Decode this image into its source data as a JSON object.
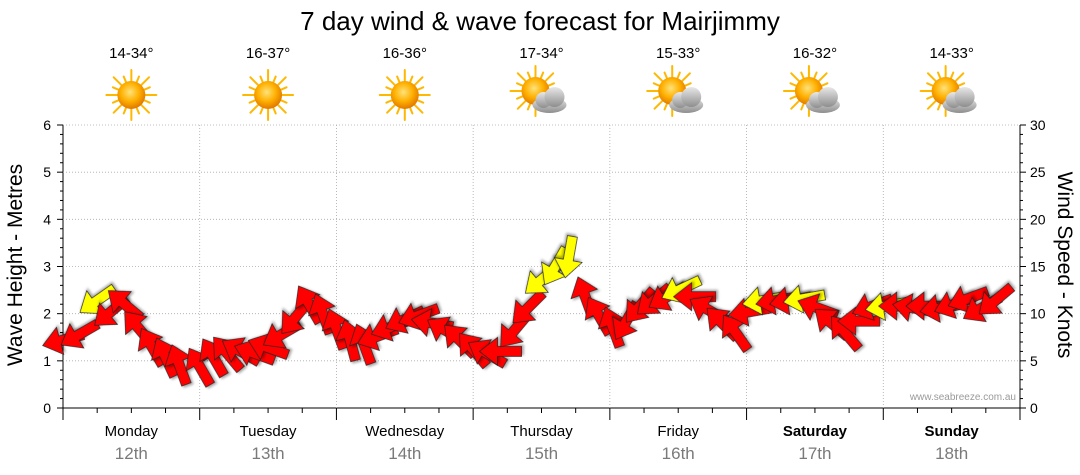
{
  "chart_data": {
    "type": "line",
    "title": "7 day wind & wave forecast for Mairjimmy",
    "ylabel_left": "Wave Height - Metres",
    "ylabel_right": "Wind Speed - Knots",
    "ylim_left": [
      0,
      6
    ],
    "ylim_right": [
      0,
      30
    ],
    "yticks_left": [
      "0",
      "1",
      "2",
      "3",
      "4",
      "5",
      "6"
    ],
    "yticks_right": [
      "0",
      "5",
      "10",
      "15",
      "20",
      "25",
      "30"
    ],
    "grid": true,
    "watermark": "www.seabreeze.com.au",
    "days": [
      {
        "name": "Monday",
        "date": "12th",
        "temp": "14-34°",
        "weather": "sunny",
        "bold": false
      },
      {
        "name": "Tuesday",
        "date": "13th",
        "temp": "16-37°",
        "weather": "sunny",
        "bold": false
      },
      {
        "name": "Wednesday",
        "date": "14th",
        "temp": "16-36°",
        "weather": "sunny",
        "bold": false
      },
      {
        "name": "Thursday",
        "date": "15th",
        "temp": "17-34°",
        "weather": "partly-cloudy",
        "bold": false
      },
      {
        "name": "Friday",
        "date": "16th",
        "temp": "15-33°",
        "weather": "partly-cloudy",
        "bold": false
      },
      {
        "name": "Saturday",
        "date": "17th",
        "temp": "16-32°",
        "weather": "partly-cloudy",
        "bold": true
      },
      {
        "name": "Sunday",
        "date": "18th",
        "temp": "14-33°",
        "weather": "partly-cloudy",
        "bold": true
      }
    ],
    "wind": {
      "name": "Wind Speed - Knots",
      "colors": {
        "strong": "#ff0000",
        "light": "#ffff00",
        "outline": "#222222"
      },
      "points": [
        {
          "t": 0.0,
          "knots": 7.2,
          "dir": 75
        },
        {
          "t": 0.12,
          "knots": 7.8,
          "dir": 60
        },
        {
          "t": 0.25,
          "knots": 11.4,
          "dir": 55,
          "light": true
        },
        {
          "t": 0.35,
          "knots": 10.2,
          "dir": 50
        },
        {
          "t": 0.45,
          "knots": 11.0,
          "dir": 130
        },
        {
          "t": 0.55,
          "knots": 8.5,
          "dir": 140
        },
        {
          "t": 0.65,
          "knots": 6.5,
          "dir": 150
        },
        {
          "t": 0.75,
          "knots": 5.4,
          "dir": 155
        },
        {
          "t": 0.85,
          "knots": 4.6,
          "dir": 160
        },
        {
          "t": 1.0,
          "knots": 4.4,
          "dir": 150
        },
        {
          "t": 1.1,
          "knots": 5.4,
          "dir": 150
        },
        {
          "t": 1.2,
          "knots": 5.8,
          "dir": 140
        },
        {
          "t": 1.3,
          "knots": 6.0,
          "dir": 120
        },
        {
          "t": 1.4,
          "knots": 5.8,
          "dir": 110
        },
        {
          "t": 1.5,
          "knots": 6.4,
          "dir": 110
        },
        {
          "t": 1.6,
          "knots": 7.8,
          "dir": 60
        },
        {
          "t": 1.7,
          "knots": 9.6,
          "dir": 40
        },
        {
          "t": 1.8,
          "knots": 11.0,
          "dir": 150
        },
        {
          "t": 1.9,
          "knots": 10.0,
          "dir": 160
        },
        {
          "t": 2.0,
          "knots": 8.4,
          "dir": 160
        },
        {
          "t": 2.1,
          "knots": 7.2,
          "dir": 165
        },
        {
          "t": 2.2,
          "knots": 6.8,
          "dir": 160
        },
        {
          "t": 2.3,
          "knots": 7.6,
          "dir": 70
        },
        {
          "t": 2.4,
          "knots": 8.6,
          "dir": 70
        },
        {
          "t": 2.5,
          "knots": 9.4,
          "dir": 65
        },
        {
          "t": 2.6,
          "knots": 9.8,
          "dir": 70
        },
        {
          "t": 2.7,
          "knots": 9.0,
          "dir": 100
        },
        {
          "t": 2.8,
          "knots": 8.2,
          "dir": 120
        },
        {
          "t": 2.9,
          "knots": 7.2,
          "dir": 135
        },
        {
          "t": 3.0,
          "knots": 6.2,
          "dir": 140
        },
        {
          "t": 3.1,
          "knots": 5.8,
          "dir": 120
        },
        {
          "t": 3.2,
          "knots": 6.0,
          "dir": 90
        },
        {
          "t": 3.3,
          "knots": 8.2,
          "dir": 40
        },
        {
          "t": 3.4,
          "knots": 10.6,
          "dir": 45
        },
        {
          "t": 3.5,
          "knots": 13.6,
          "dir": 50,
          "light": true
        },
        {
          "t": 3.6,
          "knots": 15.0,
          "dir": 30,
          "light": true
        },
        {
          "t": 3.7,
          "knots": 16.0,
          "dir": 10,
          "light": true
        },
        {
          "t": 3.82,
          "knots": 11.8,
          "dir": 160
        },
        {
          "t": 3.92,
          "knots": 9.8,
          "dir": 150
        },
        {
          "t": 4.02,
          "knots": 8.6,
          "dir": 160
        },
        {
          "t": 4.12,
          "knots": 9.2,
          "dir": 30
        },
        {
          "t": 4.22,
          "knots": 10.8,
          "dir": 40
        },
        {
          "t": 4.32,
          "knots": 11.4,
          "dir": 50
        },
        {
          "t": 4.42,
          "knots": 11.8,
          "dir": 60
        },
        {
          "t": 4.52,
          "knots": 12.6,
          "dir": 65,
          "light": true
        },
        {
          "t": 4.62,
          "knots": 11.8,
          "dir": 90
        },
        {
          "t": 4.72,
          "knots": 10.4,
          "dir": 120
        },
        {
          "t": 4.82,
          "knots": 9.0,
          "dir": 135
        },
        {
          "t": 4.92,
          "knots": 8.0,
          "dir": 145
        },
        {
          "t": 5.02,
          "knots": 10.2,
          "dir": 80
        },
        {
          "t": 5.12,
          "knots": 11.4,
          "dir": 80,
          "light": true
        },
        {
          "t": 5.22,
          "knots": 11.4,
          "dir": 80
        },
        {
          "t": 5.32,
          "knots": 11.4,
          "dir": 80
        },
        {
          "t": 5.42,
          "knots": 11.6,
          "dir": 80,
          "light": true
        },
        {
          "t": 5.52,
          "knots": 10.6,
          "dir": 110
        },
        {
          "t": 5.62,
          "knots": 9.0,
          "dir": 130
        },
        {
          "t": 5.72,
          "knots": 8.0,
          "dir": 140
        },
        {
          "t": 5.82,
          "knots": 9.2,
          "dir": 90
        },
        {
          "t": 5.92,
          "knots": 10.8,
          "dir": 70
        },
        {
          "t": 6.02,
          "knots": 10.8,
          "dir": 80,
          "light": true
        },
        {
          "t": 6.12,
          "knots": 10.8,
          "dir": 90
        },
        {
          "t": 6.22,
          "knots": 10.6,
          "dir": 100
        },
        {
          "t": 6.32,
          "knots": 10.8,
          "dir": 90
        },
        {
          "t": 6.42,
          "knots": 10.6,
          "dir": 80
        },
        {
          "t": 6.52,
          "knots": 11.0,
          "dir": 70
        },
        {
          "t": 6.62,
          "knots": 11.6,
          "dir": 70
        },
        {
          "t": 6.72,
          "knots": 10.6,
          "dir": 60
        },
        {
          "t": 6.82,
          "knots": 11.4,
          "dir": 50
        }
      ]
    }
  }
}
